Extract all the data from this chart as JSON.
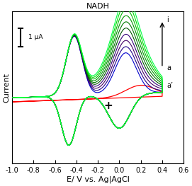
{
  "title": "NADH",
  "xlabel": "E/ V vs. Ag|AgCl",
  "ylabel": "Current",
  "xlim": [
    -1.0,
    0.6
  ],
  "x_ticks": [
    -1.0,
    -0.8,
    -0.6,
    -0.4,
    -0.2,
    0.0,
    0.2,
    0.4,
    0.6
  ],
  "x_tick_labels": [
    "-1.0",
    "-0.8",
    "-0.6",
    "-0.4",
    "-0.2",
    "0.0",
    "0.2",
    "0.4",
    "0.6"
  ],
  "scale_bar_label": "1 μA",
  "cv_colors_main": [
    "#0000cc",
    "#220088",
    "#440066",
    "#330077",
    "#005500",
    "#007700",
    "#009900",
    "#00bb00",
    "#00dd00",
    "#00ff44"
  ],
  "cv_color_bare": "#ff0000",
  "annotation_a": "a",
  "annotation_i": "i",
  "annotation_aprime": "a’",
  "annotation_plus": "+",
  "background_color": "#ffffff",
  "title_fontsize": 8,
  "label_fontsize": 8,
  "tick_fontsize": 7
}
